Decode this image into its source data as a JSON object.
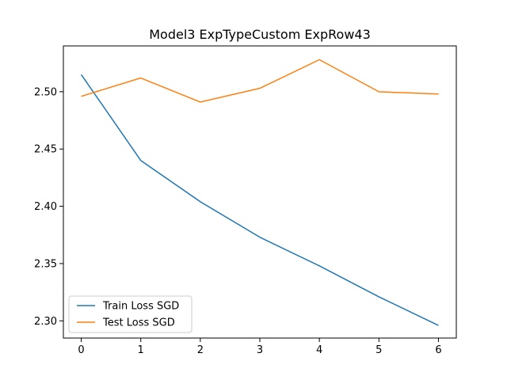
{
  "chart_data": {
    "type": "line",
    "title": "Model3 ExpTypeCustom ExpRow43",
    "xlabel": "",
    "ylabel": "",
    "x": [
      0,
      1,
      2,
      3,
      4,
      5,
      6
    ],
    "series": [
      {
        "name": "Train Loss SGD",
        "color": "#1f77b4",
        "values": [
          2.515,
          2.44,
          2.404,
          2.373,
          2.348,
          2.321,
          2.296
        ]
      },
      {
        "name": "Test Loss SGD",
        "color": "#ff7f0e",
        "values": [
          2.496,
          2.512,
          2.491,
          2.503,
          2.528,
          2.5,
          2.498
        ]
      }
    ],
    "xlim": [
      -0.3,
      6.3
    ],
    "ylim": [
      2.285,
      2.54
    ],
    "xticks": [
      0,
      1,
      2,
      3,
      4,
      5,
      6
    ],
    "yticks": [
      2.3,
      2.35,
      2.4,
      2.45,
      2.5
    ],
    "ytick_labels": [
      "2.30",
      "2.35",
      "2.40",
      "2.45",
      "2.50"
    ],
    "grid": false,
    "legend_position": "lower-left"
  }
}
